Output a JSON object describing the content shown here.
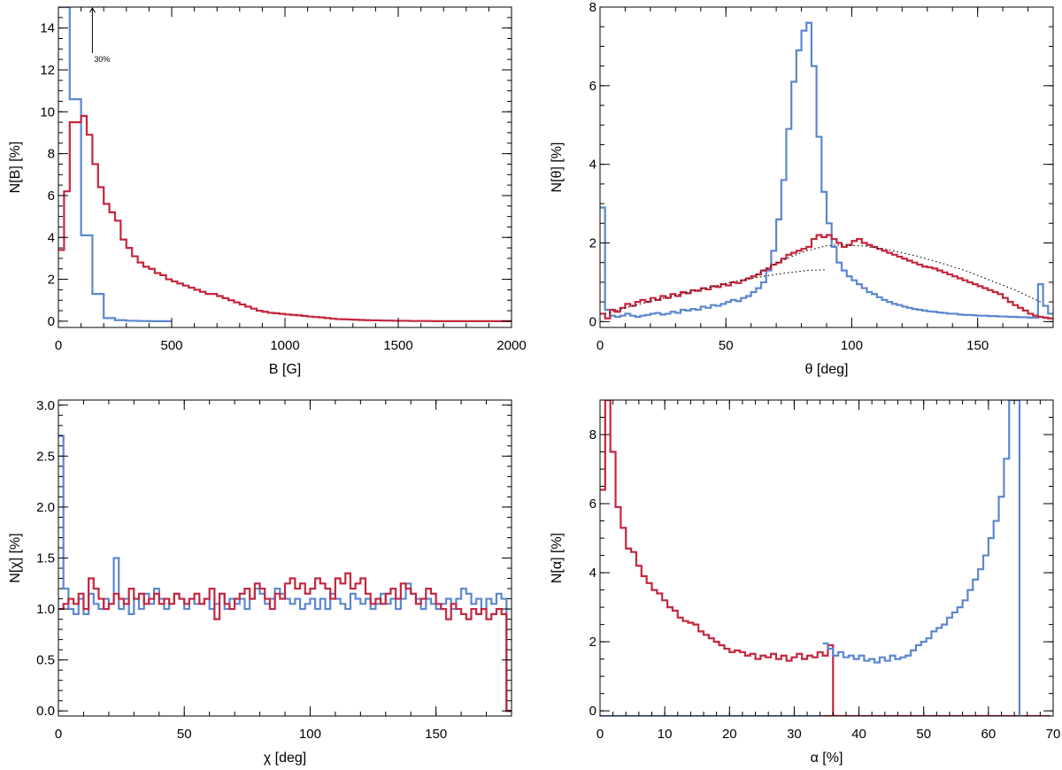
{
  "colors": {
    "blue": "#5b87cf",
    "red": "#c4263e",
    "axis": "#000000",
    "fit": "#000000"
  },
  "chart_data": [
    {
      "type": "line",
      "step": true,
      "title": "",
      "xlabel": "B [G]",
      "ylabel": "N[B] [%]",
      "xlim": [
        0,
        2000
      ],
      "ylim": [
        -0.3,
        15
      ],
      "xticks": [
        0,
        500,
        1000,
        1500,
        2000
      ],
      "xtick_labels": [
        "0",
        "500",
        "1000",
        "1500",
        "2000"
      ],
      "yticks": [
        0,
        2,
        4,
        6,
        8,
        10,
        12,
        14
      ],
      "ytick_labels": [
        "0",
        "2",
        "4",
        "6",
        "8",
        "10",
        "12",
        "14"
      ],
      "x_minor": 100,
      "y_minor": 0.5,
      "annotation": {
        "text": "30%",
        "x": 150,
        "y_from": 12.8,
        "y_to": 15
      },
      "series": [
        {
          "name": "blue",
          "color": "blue",
          "bin_width": 50,
          "x_start": 0,
          "values": [
            30,
            10.6,
            4.1,
            1.3,
            0.15,
            0.05,
            0.02,
            0.01,
            0,
            0
          ]
        },
        {
          "name": "red",
          "color": "red",
          "bin_width": 25,
          "x_start": 0,
          "values": [
            3.4,
            6.2,
            9.5,
            9.5,
            9.8,
            8.9,
            7.5,
            6.4,
            5.6,
            5.2,
            4.8,
            3.9,
            3.5,
            3.1,
            2.8,
            2.6,
            2.5,
            2.3,
            2.2,
            2.0,
            1.9,
            1.8,
            1.7,
            1.6,
            1.5,
            1.4,
            1.3,
            1.3,
            1.2,
            1.1,
            1.0,
            0.9,
            0.8,
            0.7,
            0.6,
            0.5,
            0.45,
            0.4,
            0.38,
            0.35,
            0.32,
            0.3,
            0.28,
            0.25,
            0.22,
            0.2,
            0.18,
            0.15,
            0.12,
            0.1,
            0.09,
            0.08,
            0.07,
            0.06,
            0.05,
            0.04,
            0.04,
            0.03,
            0.03,
            0.02,
            0.02,
            0.02,
            0.01,
            0.01,
            0.01,
            0.01,
            0,
            0,
            0,
            0,
            0,
            0,
            0,
            0,
            0,
            0,
            0,
            0,
            0,
            0
          ]
        }
      ]
    },
    {
      "type": "line",
      "step": true,
      "title": "",
      "xlabel": "θ [deg]",
      "ylabel": "N[θ] [%]",
      "xlim": [
        0,
        180
      ],
      "ylim": [
        -0.15,
        8
      ],
      "xticks": [
        0,
        50,
        100,
        150
      ],
      "xtick_labels": [
        "0",
        "50",
        "100",
        "150"
      ],
      "yticks": [
        0,
        2,
        4,
        6,
        8
      ],
      "ytick_labels": [
        "0",
        "2",
        "4",
        "6",
        "8"
      ],
      "x_minor": 10,
      "y_minor": 0.5,
      "series": [
        {
          "name": "blue",
          "color": "blue",
          "bin_width": 2,
          "x_start": 0,
          "values": [
            2.9,
            0.3,
            0.15,
            0.12,
            0.15,
            0.2,
            0.15,
            0.12,
            0.15,
            0.17,
            0.2,
            0.22,
            0.18,
            0.2,
            0.25,
            0.22,
            0.3,
            0.28,
            0.32,
            0.3,
            0.38,
            0.35,
            0.42,
            0.4,
            0.45,
            0.5,
            0.55,
            0.52,
            0.6,
            0.65,
            0.75,
            0.85,
            1.0,
            1.3,
            1.8,
            2.6,
            3.6,
            4.9,
            6.1,
            6.9,
            7.4,
            7.6,
            6.5,
            4.7,
            3.3,
            2.5,
            1.9,
            1.5,
            1.3,
            1.15,
            1.05,
            0.95,
            0.85,
            0.75,
            0.7,
            0.62,
            0.55,
            0.5,
            0.45,
            0.42,
            0.38,
            0.35,
            0.32,
            0.3,
            0.28,
            0.26,
            0.25,
            0.23,
            0.22,
            0.2,
            0.2,
            0.18,
            0.17,
            0.17,
            0.16,
            0.15,
            0.15,
            0.14,
            0.14,
            0.13,
            0.13,
            0.12,
            0.12,
            0.11,
            0.11,
            0.1,
            0.1,
            0.95,
            0.4,
            0.2
          ]
        },
        {
          "name": "red",
          "color": "red",
          "bin_width": 2,
          "x_start": 0,
          "values": [
            0.2,
            0.08,
            0.3,
            0.25,
            0.35,
            0.45,
            0.4,
            0.5,
            0.55,
            0.5,
            0.6,
            0.55,
            0.65,
            0.6,
            0.7,
            0.65,
            0.75,
            0.72,
            0.8,
            0.78,
            0.85,
            0.82,
            0.9,
            0.88,
            0.95,
            0.92,
            1.0,
            0.98,
            1.05,
            1.1,
            1.15,
            1.2,
            1.3,
            1.35,
            1.45,
            1.5,
            1.6,
            1.7,
            1.75,
            1.8,
            1.85,
            1.9,
            2.1,
            2.2,
            2.15,
            2.2,
            2.1,
            2.0,
            1.9,
            1.95,
            2.05,
            2.1,
            2.0,
            1.95,
            1.9,
            1.85,
            1.8,
            1.75,
            1.7,
            1.65,
            1.6,
            1.55,
            1.5,
            1.45,
            1.4,
            1.38,
            1.35,
            1.3,
            1.25,
            1.2,
            1.15,
            1.1,
            1.05,
            1.0,
            0.95,
            0.9,
            0.85,
            0.8,
            0.75,
            0.7,
            0.6,
            0.5,
            0.42,
            0.35,
            0.28,
            0.2,
            0.15,
            0.12,
            0.1,
            0.08
          ]
        }
      ],
      "fit_curves": [
        {
          "name": "dotted-fit-left",
          "x": [
            2,
            12,
            22,
            32,
            42,
            52,
            62,
            72,
            82,
            90
          ],
          "y": [
            0.2,
            0.38,
            0.55,
            0.7,
            0.85,
            1.0,
            1.12,
            1.22,
            1.3,
            1.32
          ]
        },
        {
          "name": "dotted-fit-right",
          "x": [
            62,
            72,
            82,
            90,
            96,
            105,
            115,
            125,
            135,
            145,
            155,
            165,
            175
          ],
          "y": [
            1.2,
            1.55,
            1.8,
            1.93,
            1.95,
            1.92,
            1.82,
            1.68,
            1.5,
            1.3,
            1.05,
            0.8,
            0.5
          ]
        }
      ]
    },
    {
      "type": "line",
      "step": true,
      "title": "",
      "xlabel": "χ [deg]",
      "ylabel": "N[χ] [%]",
      "xlim": [
        0,
        180
      ],
      "ylim": [
        -0.05,
        3.05
      ],
      "xticks": [
        0,
        50,
        100,
        150
      ],
      "xtick_labels": [
        "0",
        "50",
        "100",
        "150"
      ],
      "yticks": [
        0,
        0.5,
        1,
        1.5,
        2,
        2.5,
        3
      ],
      "ytick_labels": [
        "0.0",
        "0.5",
        "1.0",
        "1.5",
        "2.0",
        "2.5",
        "3.0"
      ],
      "x_minor": 10,
      "y_minor": 0.1,
      "series": [
        {
          "name": "blue",
          "color": "blue",
          "bin_width": 2,
          "x_start": 0,
          "values": [
            2.7,
            1.2,
            1.0,
            0.95,
            1.1,
            0.95,
            1.15,
            1.05,
            1.0,
            1.1,
            1.05,
            1.5,
            1.0,
            1.1,
            0.95,
            1.1,
            1.0,
            1.15,
            1.05,
            1.2,
            1.1,
            1.0,
            1.05,
            1.15,
            1.1,
            1.0,
            1.1,
            1.05,
            1.05,
            1.1,
            1.0,
            1.05,
            1.15,
            1.0,
            1.1,
            1.05,
            1.1,
            1.0,
            1.1,
            1.2,
            1.15,
            1.05,
            1.1,
            1.2,
            1.15,
            1.1,
            1.05,
            1.1,
            1.0,
            1.05,
            1.1,
            1.0,
            1.1,
            1.0,
            1.15,
            1.1,
            1.05,
            1.0,
            1.15,
            1.1,
            1.05,
            1.1,
            1.0,
            1.05,
            1.15,
            1.05,
            1.1,
            1.0,
            1.1,
            1.25,
            1.15,
            1.1,
            1.0,
            1.1,
            1.05,
            1.0,
            1.05,
            1.1,
            1.0,
            1.1,
            1.2,
            1.15,
            1.05,
            1.1,
            1.0,
            1.1,
            1.05,
            1.15,
            1.1,
            0.0
          ]
        },
        {
          "name": "red",
          "color": "red",
          "bin_width": 2,
          "x_start": 0,
          "values": [
            1.0,
            1.05,
            1.1,
            1.05,
            1.15,
            1.0,
            1.3,
            1.2,
            1.1,
            1.0,
            1.05,
            1.15,
            1.1,
            1.05,
            1.2,
            1.1,
            1.15,
            1.05,
            1.1,
            1.15,
            1.05,
            1.1,
            1.05,
            1.15,
            1.1,
            1.05,
            1.1,
            1.15,
            1.05,
            1.1,
            1.2,
            0.9,
            1.15,
            1.05,
            1.0,
            1.1,
            1.15,
            1.2,
            1.1,
            1.25,
            1.2,
            1.1,
            1.0,
            1.15,
            1.1,
            1.25,
            1.3,
            1.2,
            1.25,
            1.15,
            1.2,
            1.3,
            1.25,
            1.2,
            1.1,
            1.3,
            1.25,
            1.35,
            1.2,
            1.25,
            1.3,
            1.15,
            1.05,
            1.1,
            1.05,
            1.15,
            1.2,
            1.1,
            1.25,
            1.2,
            1.15,
            1.05,
            1.1,
            1.2,
            1.15,
            1.05,
            1.0,
            0.9,
            1.05,
            1.0,
            0.95,
            0.9,
            1.0,
            0.95,
            1.0,
            0.9,
            0.95,
            1.0,
            0.95,
            0.0
          ]
        }
      ]
    },
    {
      "type": "line",
      "step": true,
      "title": "",
      "xlabel": "α [%]",
      "ylabel": "N[α] [%]",
      "xlim": [
        0,
        70
      ],
      "ylim": [
        -0.15,
        9
      ],
      "xticks": [
        0,
        10,
        20,
        30,
        40,
        50,
        60,
        70
      ],
      "xtick_labels": [
        "0",
        "10",
        "20",
        "30",
        "40",
        "50",
        "60",
        "70"
      ],
      "yticks": [
        0,
        2,
        4,
        6,
        8
      ],
      "ytick_labels": [
        "0",
        "2",
        "4",
        "6",
        "8"
      ],
      "x_minor": 2,
      "y_minor": 0.5,
      "series": [
        {
          "name": "red",
          "color": "red",
          "bin_width": 0.8,
          "x_start": 0,
          "values": [
            6.4,
            9.5,
            7.5,
            5.9,
            5.3,
            4.7,
            4.6,
            4.2,
            3.9,
            3.7,
            3.5,
            3.4,
            3.2,
            3.0,
            2.9,
            2.7,
            2.6,
            2.55,
            2.5,
            2.3,
            2.2,
            2.1,
            2.0,
            1.9,
            1.8,
            1.7,
            1.75,
            1.7,
            1.6,
            1.65,
            1.5,
            1.6,
            1.55,
            1.65,
            1.5,
            1.6,
            1.45,
            1.55,
            1.65,
            1.5,
            1.6,
            1.55,
            1.7,
            1.6,
            1.9,
            -0.15
          ]
        },
        {
          "name": "red-zero",
          "color": "red",
          "bin_width": 0.8,
          "x_start": 34.4,
          "values": [
            -0.15,
            -0.15,
            -0.15,
            -0.15,
            -0.15,
            -0.15,
            -0.15,
            -0.15,
            -0.15,
            -0.15,
            -0.15,
            -0.15,
            -0.15,
            -0.15,
            -0.15,
            -0.15,
            -0.15,
            -0.15,
            -0.15,
            -0.15,
            -0.15,
            -0.15,
            -0.15,
            -0.15,
            -0.15,
            -0.15,
            -0.15,
            -0.15,
            -0.15,
            -0.15,
            -0.15,
            -0.15,
            -0.15,
            -0.15,
            -0.15,
            -0.15,
            -0.15,
            -0.15,
            -0.15,
            -0.15,
            -0.15,
            -0.15,
            -0.15,
            -0.15
          ]
        },
        {
          "name": "blue",
          "color": "blue",
          "bin_width": 0.8,
          "x_start": 34.4,
          "values": [
            1.95,
            1.8,
            1.6,
            1.7,
            1.55,
            1.6,
            1.5,
            1.6,
            1.45,
            1.5,
            1.4,
            1.55,
            1.45,
            1.6,
            1.5,
            1.55,
            1.6,
            1.75,
            1.9,
            2.0,
            2.1,
            2.3,
            2.4,
            2.5,
            2.7,
            2.85,
            3.0,
            3.2,
            3.5,
            3.8,
            4.1,
            4.5,
            5.0,
            5.5,
            6.2,
            7.3,
            9.5,
            9.5,
            -0.15
          ]
        },
        {
          "name": "blue-zero",
          "color": "blue",
          "bin_width": 0.8,
          "x_start": 0,
          "values": [
            -0.15,
            -0.15,
            -0.15,
            -0.15,
            -0.15,
            -0.15,
            -0.15,
            -0.15,
            -0.15,
            -0.15,
            -0.15,
            -0.15,
            -0.15,
            -0.15,
            -0.15,
            -0.15,
            -0.15,
            -0.15,
            -0.15,
            -0.15,
            -0.15,
            -0.15,
            -0.15,
            -0.15,
            -0.15,
            -0.15,
            -0.15,
            -0.15,
            -0.15,
            -0.15,
            -0.15,
            -0.15,
            -0.15,
            -0.15,
            -0.15,
            -0.15,
            -0.15,
            -0.15,
            -0.15,
            -0.15,
            -0.15,
            -0.15,
            -0.15
          ]
        }
      ]
    }
  ]
}
